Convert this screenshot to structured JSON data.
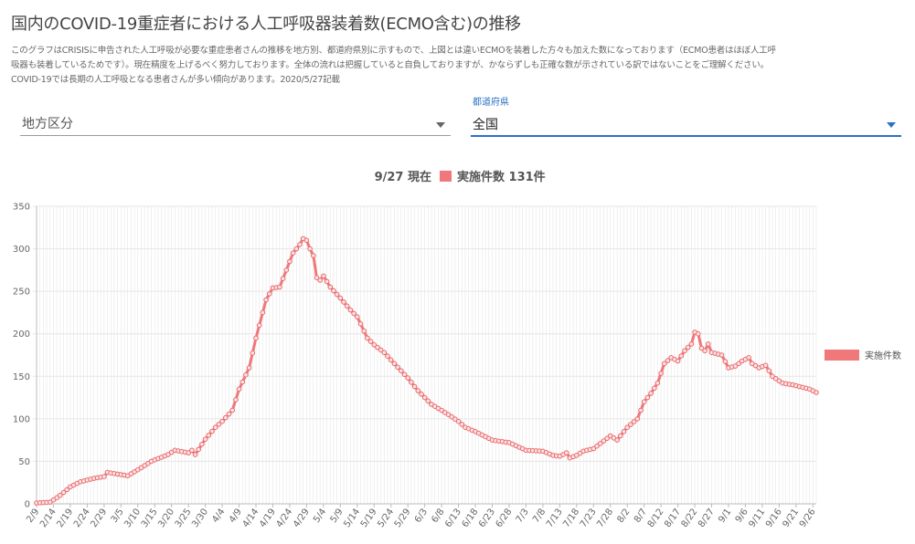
{
  "page": {
    "title": "国内のCOVID-19重症者における人工呼吸器装着数(ECMO含む)の推移",
    "description_lines": [
      "このグラフはCRISISに申告された人工呼吸が必要な重症患者さんの推移を地方別、都道府県別に示すもので、上図とは違いECMOを装着した方々も加えた数になっております（ECMO患者はほぼ人工呼",
      "吸器も装着しているためです）。現在精度を上げるべく努力しております。全体の流れは把握していると自負しておりますが、かならずしも正確な数が示されている訳ではないことをご理解ください。",
      "COVID-19では長期の人工呼吸となる患者さんが多い傾向があります。2020/5/27記載"
    ]
  },
  "filters": {
    "region": {
      "value": "地方区分"
    },
    "prefecture": {
      "label": "都道府県",
      "value": "全国"
    }
  },
  "colors": {
    "series": "#f0787a",
    "series_marker": "#e86a6d",
    "grid": "#e6e6e6",
    "axis": "#bbbbbb",
    "active": "#2c73c4"
  },
  "chart_data": {
    "type": "line",
    "title": "9/27 現在",
    "title_suffix": "実施件数 131件",
    "ylim": [
      0,
      350
    ],
    "yticks": [
      0,
      50,
      100,
      150,
      200,
      250,
      300,
      350
    ],
    "xticks": [
      "2/9",
      "2/14",
      "2/19",
      "2/24",
      "2/29",
      "3/5",
      "3/10",
      "3/15",
      "3/20",
      "3/25",
      "3/30",
      "4/4",
      "4/9",
      "4/14",
      "4/19",
      "4/24",
      "4/29",
      "5/4",
      "5/9",
      "5/14",
      "5/19",
      "5/24",
      "5/29",
      "6/3",
      "6/8",
      "6/13",
      "6/18",
      "6/23",
      "6/28",
      "7/3",
      "7/8",
      "7/13",
      "7/18",
      "7/23",
      "7/28",
      "8/2",
      "8/7",
      "8/12",
      "8/17",
      "8/22",
      "8/27",
      "9/1",
      "9/6",
      "9/11",
      "9/16",
      "9/21",
      "9/26"
    ],
    "series": [
      {
        "name": "実施件数",
        "x_start": "2/9",
        "x_end": "9/27",
        "keyframes": [
          {
            "x": "2/9",
            "y": 1
          },
          {
            "x": "2/13",
            "y": 2
          },
          {
            "x": "2/16",
            "y": 10
          },
          {
            "x": "2/19",
            "y": 20
          },
          {
            "x": "2/22",
            "y": 26
          },
          {
            "x": "2/26",
            "y": 30
          },
          {
            "x": "2/29",
            "y": 32
          },
          {
            "x": "3/1",
            "y": 37
          },
          {
            "x": "3/4",
            "y": 35
          },
          {
            "x": "3/7",
            "y": 33
          },
          {
            "x": "3/10",
            "y": 40
          },
          {
            "x": "3/14",
            "y": 50
          },
          {
            "x": "3/19",
            "y": 58
          },
          {
            "x": "3/21",
            "y": 63
          },
          {
            "x": "3/25",
            "y": 60
          },
          {
            "x": "3/26",
            "y": 63
          },
          {
            "x": "3/27",
            "y": 58
          },
          {
            "x": "3/30",
            "y": 76
          },
          {
            "x": "4/2",
            "y": 90
          },
          {
            "x": "4/4",
            "y": 97
          },
          {
            "x": "4/7",
            "y": 110
          },
          {
            "x": "4/9",
            "y": 135
          },
          {
            "x": "4/12",
            "y": 160
          },
          {
            "x": "4/14",
            "y": 195
          },
          {
            "x": "4/17",
            "y": 240
          },
          {
            "x": "4/19",
            "y": 254
          },
          {
            "x": "4/21",
            "y": 255
          },
          {
            "x": "4/23",
            "y": 275
          },
          {
            "x": "4/25",
            "y": 295
          },
          {
            "x": "4/27",
            "y": 305
          },
          {
            "x": "4/28",
            "y": 312
          },
          {
            "x": "4/29",
            "y": 310
          },
          {
            "x": "4/30",
            "y": 300
          },
          {
            "x": "5/1",
            "y": 292
          },
          {
            "x": "5/2",
            "y": 266
          },
          {
            "x": "5/3",
            "y": 263
          },
          {
            "x": "5/4",
            "y": 268
          },
          {
            "x": "5/6",
            "y": 255
          },
          {
            "x": "5/9",
            "y": 242
          },
          {
            "x": "5/12",
            "y": 228
          },
          {
            "x": "5/14",
            "y": 220
          },
          {
            "x": "5/17",
            "y": 195
          },
          {
            "x": "5/19",
            "y": 187
          },
          {
            "x": "5/22",
            "y": 178
          },
          {
            "x": "5/25",
            "y": 165
          },
          {
            "x": "5/29",
            "y": 148
          },
          {
            "x": "6/1",
            "y": 133
          },
          {
            "x": "6/3",
            "y": 125
          },
          {
            "x": "6/5",
            "y": 117
          },
          {
            "x": "6/8",
            "y": 110
          },
          {
            "x": "6/10",
            "y": 105
          },
          {
            "x": "6/13",
            "y": 97
          },
          {
            "x": "6/15",
            "y": 90
          },
          {
            "x": "6/18",
            "y": 85
          },
          {
            "x": "6/23",
            "y": 75
          },
          {
            "x": "6/28",
            "y": 72
          },
          {
            "x": "7/3",
            "y": 63
          },
          {
            "x": "7/8",
            "y": 62
          },
          {
            "x": "7/11",
            "y": 57
          },
          {
            "x": "7/13",
            "y": 56
          },
          {
            "x": "7/15",
            "y": 60
          },
          {
            "x": "7/16",
            "y": 54
          },
          {
            "x": "7/18",
            "y": 57
          },
          {
            "x": "7/20",
            "y": 62
          },
          {
            "x": "7/23",
            "y": 65
          },
          {
            "x": "7/26",
            "y": 74
          },
          {
            "x": "7/28",
            "y": 80
          },
          {
            "x": "7/30",
            "y": 75
          },
          {
            "x": "8/2",
            "y": 90
          },
          {
            "x": "8/5",
            "y": 100
          },
          {
            "x": "8/7",
            "y": 120
          },
          {
            "x": "8/9",
            "y": 130
          },
          {
            "x": "8/11",
            "y": 142
          },
          {
            "x": "8/13",
            "y": 165
          },
          {
            "x": "8/15",
            "y": 172
          },
          {
            "x": "8/17",
            "y": 168
          },
          {
            "x": "8/19",
            "y": 180
          },
          {
            "x": "8/21",
            "y": 188
          },
          {
            "x": "8/22",
            "y": 202
          },
          {
            "x": "8/23",
            "y": 200
          },
          {
            "x": "8/24",
            "y": 183
          },
          {
            "x": "8/25",
            "y": 180
          },
          {
            "x": "8/26",
            "y": 188
          },
          {
            "x": "8/27",
            "y": 178
          },
          {
            "x": "8/30",
            "y": 175
          },
          {
            "x": "9/1",
            "y": 160
          },
          {
            "x": "9/3",
            "y": 162
          },
          {
            "x": "9/5",
            "y": 168
          },
          {
            "x": "9/7",
            "y": 172
          },
          {
            "x": "9/8",
            "y": 165
          },
          {
            "x": "9/10",
            "y": 160
          },
          {
            "x": "9/12",
            "y": 163
          },
          {
            "x": "9/14",
            "y": 150
          },
          {
            "x": "9/17",
            "y": 142
          },
          {
            "x": "9/20",
            "y": 140
          },
          {
            "x": "9/23",
            "y": 137
          },
          {
            "x": "9/25",
            "y": 135
          },
          {
            "x": "9/27",
            "y": 131
          }
        ]
      }
    ],
    "legend": {
      "position": "right",
      "label": "実施件数"
    },
    "grid": true
  }
}
